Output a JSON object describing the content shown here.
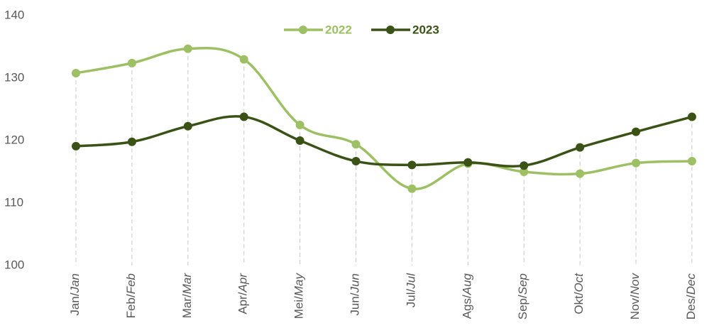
{
  "chart_data": {
    "type": "line",
    "categories": [
      "Jan/Jan",
      "Feb/Feb",
      "Mar/Mar",
      "Apr/Apr",
      "Mei/May",
      "Jun/Jun",
      "Jul/Jul",
      "Ags/Aug",
      "Sep/Sep",
      "Okt/Oct",
      "Nov/Nov",
      "Des/Dec"
    ],
    "series": [
      {
        "name": "2022",
        "color": "#9dc064",
        "values": [
          130.8,
          132.4,
          134.7,
          133.0,
          122.5,
          119.4,
          112.3,
          116.3,
          115.0,
          114.7,
          116.4,
          116.7
        ]
      },
      {
        "name": "2023",
        "color": "#3b5216",
        "values": [
          119.1,
          119.8,
          122.3,
          123.8,
          120.0,
          116.7,
          116.1,
          116.5,
          116.0,
          118.9,
          121.4,
          123.8
        ]
      }
    ],
    "ylim": [
      100,
      140
    ],
    "yticks": [
      100,
      110,
      120,
      130,
      140
    ],
    "legend": "top"
  }
}
